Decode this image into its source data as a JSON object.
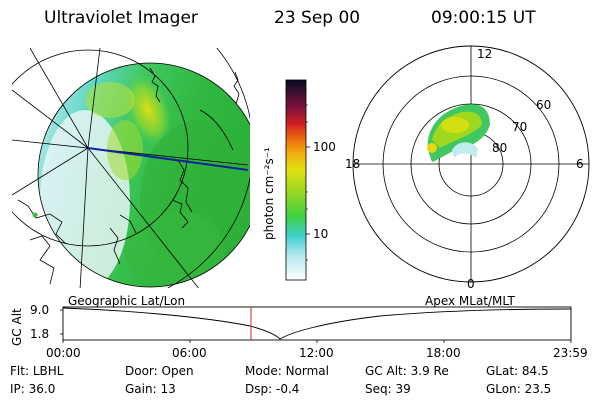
{
  "header": {
    "instrument": "Ultraviolet Imager",
    "date": "23 Sep 00",
    "time": "09:00:15 UT"
  },
  "colorbar": {
    "unit_label": "photon cm⁻²s⁻¹",
    "ticks": [
      "100",
      "10"
    ],
    "colors": [
      "#1a0a2e",
      "#3a1030",
      "#b01030",
      "#e84020",
      "#f08010",
      "#f0c010",
      "#d8e010",
      "#a0d820",
      "#40d040",
      "#20c0a0",
      "#60d8e0",
      "#ffffff"
    ]
  },
  "polar_plot": {
    "mlt_labels": {
      "top": "12",
      "bottom": "0",
      "left": "18",
      "right": "6"
    },
    "lat_labels": [
      "60",
      "70",
      "80"
    ]
  },
  "panel_labels": {
    "left": "Geographic Lat/Lon",
    "right": "Apex MLat/MLT"
  },
  "altitude_plot": {
    "ylabel": "GC Alt",
    "yticks": [
      "9.0",
      "1.8"
    ],
    "xticks": [
      "00:00",
      "06:00",
      "12:00",
      "18:00",
      "23:59"
    ],
    "marker_time": "09:00"
  },
  "info": {
    "flt": {
      "label": "Flt:",
      "value": "LBHL"
    },
    "ip": {
      "label": "IP:",
      "value": "36.0"
    },
    "door": {
      "label": "Door:",
      "value": "Open"
    },
    "gain": {
      "label": "Gain:",
      "value": "13"
    },
    "mode": {
      "label": "Mode:",
      "value": "Normal"
    },
    "dsp": {
      "label": "Dsp:",
      "value": "-0.4"
    },
    "gcalt": {
      "label": "GC Alt:",
      "value": "3.9 Re"
    },
    "seq": {
      "label": "Seq:",
      "value": "39"
    },
    "glat": {
      "label": "GLat:",
      "value": "84.5"
    },
    "glon": {
      "label": "GLon:",
      "value": "23.5"
    }
  }
}
